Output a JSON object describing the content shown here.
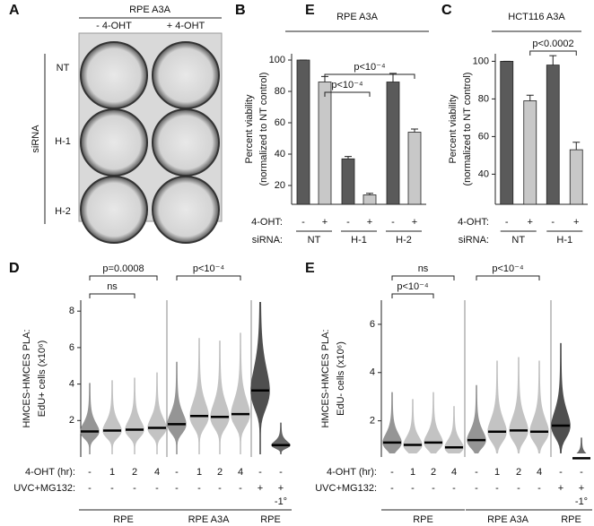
{
  "image_panel": {
    "label": "A",
    "title": "RPE A3A",
    "columns": [
      "- 4-OHT",
      "+ 4-OHT"
    ],
    "rows": [
      "NT",
      "H-1",
      "H-2"
    ],
    "row_title": "siRNA"
  },
  "chart_data": [
    {
      "panel_label": "B",
      "type": "bar",
      "title": "RPE A3A",
      "ylabel": [
        "Percent viability",
        "(normalized to NT control)"
      ],
      "row_labels": [
        "4-OHT:",
        "siRNA:"
      ],
      "categories": [
        "NT",
        "H-1",
        "H-2"
      ],
      "series": [
        {
          "name": "-",
          "color": "#5a5a5a",
          "values": [
            100,
            37,
            86
          ],
          "errors": [
            0,
            1.5,
            5.5
          ]
        },
        {
          "name": "+",
          "color": "#c8c8c8",
          "values": [
            86,
            14,
            54
          ],
          "errors": [
            3.5,
            1,
            2
          ]
        }
      ],
      "ylim": [
        8,
        104
      ],
      "yticks": [
        20,
        40,
        60,
        80,
        100
      ],
      "annotations": [
        "p<10⁻⁴",
        "p<10⁻⁴"
      ]
    },
    {
      "panel_label": "C",
      "type": "bar",
      "title": "HCT116 A3A",
      "ylabel": [
        "Percent viability",
        "(normalized to NT control)"
      ],
      "row_labels": [
        "4-OHT:",
        "siRNA:"
      ],
      "categories": [
        "NT",
        "H-1"
      ],
      "series": [
        {
          "name": "-",
          "color": "#5a5a5a",
          "values": [
            100,
            98
          ],
          "errors": [
            0,
            5
          ]
        },
        {
          "name": "+",
          "color": "#c8c8c8",
          "values": [
            79,
            53
          ],
          "errors": [
            3,
            4
          ]
        }
      ],
      "ylim": [
        24,
        104
      ],
      "yticks": [
        40,
        60,
        80,
        100
      ],
      "annotations": [
        "p<0.0002"
      ]
    },
    {
      "panel_label": "D",
      "type": "beeswarm",
      "ylabel": [
        "HMCES-HMCES PLA:",
        "EdU+ cells (x10⁶)"
      ],
      "row_labels": [
        "4-OHT (hr):",
        "UVC+MG132:"
      ],
      "categories": [
        "-",
        "1",
        "2",
        "4",
        "-",
        "1",
        "2",
        "4",
        "-",
        "-"
      ],
      "conditions": [
        "-",
        "-",
        "-",
        "-",
        "-",
        "-",
        "-",
        "-",
        "+",
        "+"
      ],
      "note": "-1°",
      "groups": [
        "RPE",
        "RPE A3A",
        "RPE"
      ],
      "colors": [
        "#8a8a8a",
        "#bdbdbd",
        "#bdbdbd",
        "#bdbdbd",
        "#8a8a8a",
        "#bdbdbd",
        "#bdbdbd",
        "#bdbdbd",
        "#3c3c3c",
        "#555555"
      ],
      "values": [
        1.4,
        1.45,
        1.5,
        1.6,
        1.8,
        2.25,
        2.2,
        2.35,
        3.65,
        0.65
      ],
      "ylim": [
        0,
        8.6
      ],
      "yticks": [
        2,
        4,
        6,
        8
      ],
      "annotations": [
        "p=0.0008",
        "ns",
        "p<10⁻⁴"
      ]
    },
    {
      "panel_label": "E",
      "type": "beeswarm",
      "ylabel": [
        "HMCES-HMCES PLA:",
        "EdU- cells (x10⁶)"
      ],
      "row_labels": [
        "4-OHT (hr):",
        "UVC+MG132:"
      ],
      "categories": [
        "-",
        "1",
        "2",
        "4",
        "-",
        "1",
        "2",
        "4",
        "-",
        "-"
      ],
      "conditions": [
        "-",
        "-",
        "-",
        "-",
        "-",
        "-",
        "-",
        "-",
        "+",
        "+"
      ],
      "note": "-1°",
      "groups": [
        "RPE",
        "RPE A3A",
        "RPE"
      ],
      "colors": [
        "#8a8a8a",
        "#bdbdbd",
        "#bdbdbd",
        "#bdbdbd",
        "#8a8a8a",
        "#bdbdbd",
        "#bdbdbd",
        "#bdbdbd",
        "#3c3c3c",
        "#555555"
      ],
      "values": [
        1.1,
        1.0,
        1.1,
        0.9,
        1.2,
        1.55,
        1.6,
        1.55,
        1.8,
        0.45
      ],
      "ylim": [
        0.5,
        7
      ],
      "yticks": [
        2,
        4,
        6
      ],
      "annotations": [
        "ns",
        "p<10⁻⁴",
        "p<10⁻⁴"
      ]
    }
  ]
}
